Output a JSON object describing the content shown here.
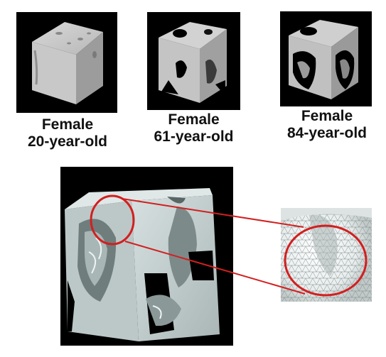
{
  "panels": [
    {
      "line1": "Female",
      "line2": "20-year-old"
    },
    {
      "line1": "Female",
      "line2": "61-year-old"
    },
    {
      "line1": "Female",
      "line2": "84-year-old"
    }
  ],
  "icons": {
    "bone_cube": "trabecular-bone-cube",
    "zoom_circle": "magnify-circle",
    "mesh": "triangle-mesh"
  },
  "colors": {
    "panel_background": "#000000",
    "bone_surface": "#c9d4d4",
    "highlight_ring": "#d21f1f",
    "mesh_lines": "#7f8a8a"
  }
}
